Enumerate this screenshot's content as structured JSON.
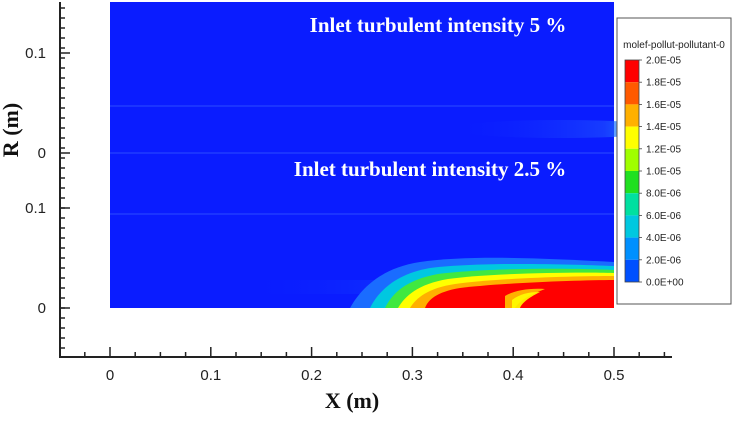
{
  "chart_data": {
    "type": "heatmap",
    "xlabel": "X (m)",
    "ylabel": "R (m)",
    "xlim": [
      0,
      0.5
    ],
    "x_ticks": [
      "0",
      "0.1",
      "0.2",
      "0.3",
      "0.4",
      "0.5"
    ],
    "panels": [
      {
        "annotation": "Inlet turbulent intensity 5 %",
        "y_ticks": [
          "0.1",
          "0"
        ],
        "ylim": [
          0,
          0.15
        ],
        "hotspot": {
          "region": "centerline near outlet",
          "x_range": [
            0.38,
            0.5
          ],
          "peak_value": "4.0E-06"
        }
      },
      {
        "annotation": "Inlet turbulent intensity 2.5 %",
        "y_ticks": [
          "0.1",
          "0"
        ],
        "ylim": [
          0,
          0.15
        ],
        "hotspot": {
          "region": "centerline near outlet",
          "x_range": [
            0.35,
            0.5
          ],
          "peak_value": "2.0E-05"
        }
      }
    ],
    "legend": {
      "title": "molef-pollut-pollutant-0",
      "placement": "right",
      "levels": [
        "2.0E-05",
        "1.8E-05",
        "1.6E-05",
        "1.4E-05",
        "1.2E-05",
        "1.0E-05",
        "8.0E-06",
        "6.0E-06",
        "4.0E-06",
        "2.0E-06",
        "0.0E+00"
      ],
      "colors": [
        "#ff0000",
        "#ff5a00",
        "#ffb000",
        "#ffff00",
        "#a0ff00",
        "#20e020",
        "#00e0a0",
        "#00c8e0",
        "#0090ff",
        "#0050ff",
        "#1020ff"
      ]
    }
  }
}
